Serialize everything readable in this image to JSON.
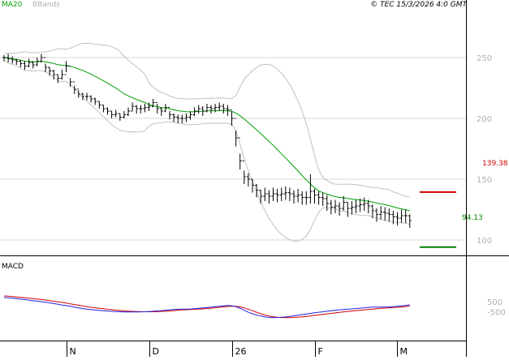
{
  "header": {
    "legend_ma20": "MA20",
    "legend_bbands": "BBands",
    "timestamp": "© TEC 15/3/2026 4:0 GMT"
  },
  "colors": {
    "price": "#000000",
    "ma20": "#00a000",
    "bbands": "#c0c0c0",
    "resistance": "#d00000",
    "support": "#008000",
    "macd_line": "#2020e0",
    "signal_line": "#d00000",
    "grid": "#d8d8d8",
    "legend_bbands_text": "#b0b0b0"
  },
  "levels": {
    "resistance_label": "139.38",
    "support_label": "94.13"
  },
  "chart_data": [
    {
      "type": "ohlc",
      "title": "",
      "ylim": [
        60,
        290
      ],
      "y_ticks": [
        100,
        150,
        200,
        250
      ],
      "y_tick_labels": [
        "100",
        "150",
        "200",
        "250"
      ],
      "x_tick_labels": [
        "N",
        "D",
        "26",
        "F",
        "M"
      ],
      "x_tick_index": [
        15,
        35,
        55,
        75,
        95
      ],
      "levels": {
        "resistance": 139.38,
        "support": 94.13
      },
      "close": [
        250,
        249,
        248,
        247,
        245,
        243,
        246,
        244,
        247,
        250,
        242,
        239,
        236,
        233,
        236,
        243,
        230,
        224,
        220,
        218,
        218,
        216,
        214,
        211,
        208,
        206,
        203,
        204,
        201,
        203,
        206,
        210,
        208,
        208,
        209,
        210,
        213,
        208,
        206,
        209,
        203,
        201,
        200,
        200,
        201,
        203,
        206,
        208,
        206,
        209,
        208,
        209,
        210,
        208,
        207,
        200,
        184,
        165,
        152,
        150,
        145,
        141,
        136,
        138,
        136,
        138,
        137,
        138,
        139,
        138,
        136,
        137,
        135,
        135,
        140,
        137,
        135,
        134,
        130,
        127,
        128,
        126,
        131,
        126,
        127,
        128,
        129,
        130,
        128,
        124,
        121,
        123,
        122,
        121,
        119,
        118,
        120,
        120,
        116
      ],
      "high": [
        252,
        253,
        251,
        249,
        248,
        247,
        249,
        247,
        250,
        253,
        245,
        242,
        240,
        236,
        240,
        247,
        233,
        227,
        223,
        221,
        221,
        219,
        217,
        214,
        211,
        209,
        206,
        207,
        204,
        206,
        209,
        213,
        211,
        211,
        212,
        213,
        216,
        212,
        209,
        212,
        206,
        204,
        203,
        203,
        204,
        206,
        209,
        211,
        210,
        212,
        211,
        212,
        213,
        212,
        211,
        206,
        190,
        171,
        157,
        155,
        150,
        146,
        141,
        143,
        141,
        143,
        142,
        143,
        144,
        143,
        141,
        142,
        140,
        140,
        154,
        142,
        140,
        139,
        137,
        133,
        133,
        131,
        136,
        131,
        132,
        133,
        134,
        135,
        133,
        129,
        126,
        128,
        127,
        126,
        124,
        123,
        125,
        125,
        121
      ],
      "low": [
        247,
        246,
        245,
        244,
        242,
        240,
        242,
        241,
        243,
        246,
        238,
        235,
        232,
        229,
        232,
        238,
        226,
        220,
        217,
        215,
        215,
        213,
        211,
        208,
        205,
        203,
        200,
        201,
        198,
        200,
        202,
        206,
        204,
        204,
        205,
        206,
        209,
        204,
        202,
        205,
        199,
        197,
        196,
        196,
        197,
        199,
        202,
        204,
        202,
        205,
        204,
        205,
        206,
        204,
        202,
        194,
        177,
        158,
        146,
        144,
        139,
        135,
        130,
        132,
        130,
        132,
        131,
        132,
        133,
        132,
        130,
        131,
        129,
        129,
        130,
        130,
        129,
        128,
        124,
        121,
        122,
        120,
        124,
        119,
        121,
        122,
        123,
        124,
        122,
        118,
        115,
        117,
        116,
        115,
        113,
        112,
        114,
        114,
        110
      ]
    },
    {
      "type": "line",
      "title": "MACD",
      "ylim": [
        -1300,
        1200
      ],
      "y_ticks": [
        500,
        -500
      ],
      "y_tick_labels": [
        "500",
        "-500"
      ],
      "series": [
        {
          "values": [
            900,
            870,
            830,
            790,
            740,
            690,
            640,
            590,
            540,
            490,
            430,
            370,
            300,
            230,
            160,
            100,
            30,
            -50,
            -120,
            -190,
            -250,
            -290,
            -330,
            -370,
            -400,
            -430,
            -460,
            -480,
            -500,
            -520,
            -520,
            -520,
            -520,
            -510,
            -500,
            -480,
            -450,
            -420,
            -390,
            -350,
            -310,
            -280,
            -260,
            -250,
            -240,
            -230,
            -210,
            -170,
            -130,
            -80,
            -40,
            0,
            40,
            80,
            110,
            90,
            0,
            -150,
            -350,
            -550,
            -700,
            -820,
            -920,
            -1000,
            -1050,
            -1070,
            -1060,
            -1040,
            -1010,
            -960,
            -900,
            -840,
            -780,
            -720,
            -660,
            -600,
            -550,
            -500,
            -450,
            -400,
            -350,
            -310,
            -280,
            -250,
            -220,
            -180,
            -150,
            -110,
            -70,
            -50,
            -40,
            -40,
            -30,
            -20,
            0,
            30,
            70,
            120,
            180
          ]
        },
        {
          "values": [
            1050,
            1020,
            990,
            950,
            910,
            870,
            830,
            790,
            740,
            700,
            650,
            590,
            530,
            470,
            410,
            350,
            280,
            210,
            140,
            70,
            0,
            -60,
            -110,
            -160,
            -210,
            -260,
            -300,
            -340,
            -380,
            -410,
            -440,
            -460,
            -480,
            -490,
            -500,
            -500,
            -500,
            -490,
            -470,
            -450,
            -420,
            -390,
            -350,
            -320,
            -300,
            -280,
            -260,
            -240,
            -220,
            -180,
            -150,
            -110,
            -60,
            -20,
            20,
            50,
            40,
            -20,
            -120,
            -250,
            -400,
            -550,
            -700,
            -820,
            -920,
            -990,
            -1030,
            -1060,
            -1070,
            -1070,
            -1050,
            -1020,
            -990,
            -950,
            -910,
            -860,
            -810,
            -760,
            -710,
            -660,
            -610,
            -560,
            -510,
            -470,
            -430,
            -390,
            -350,
            -310,
            -280,
            -240,
            -200,
            -170,
            -140,
            -110,
            -90,
            -60,
            -30,
            10,
            60
          ]
        }
      ]
    }
  ]
}
